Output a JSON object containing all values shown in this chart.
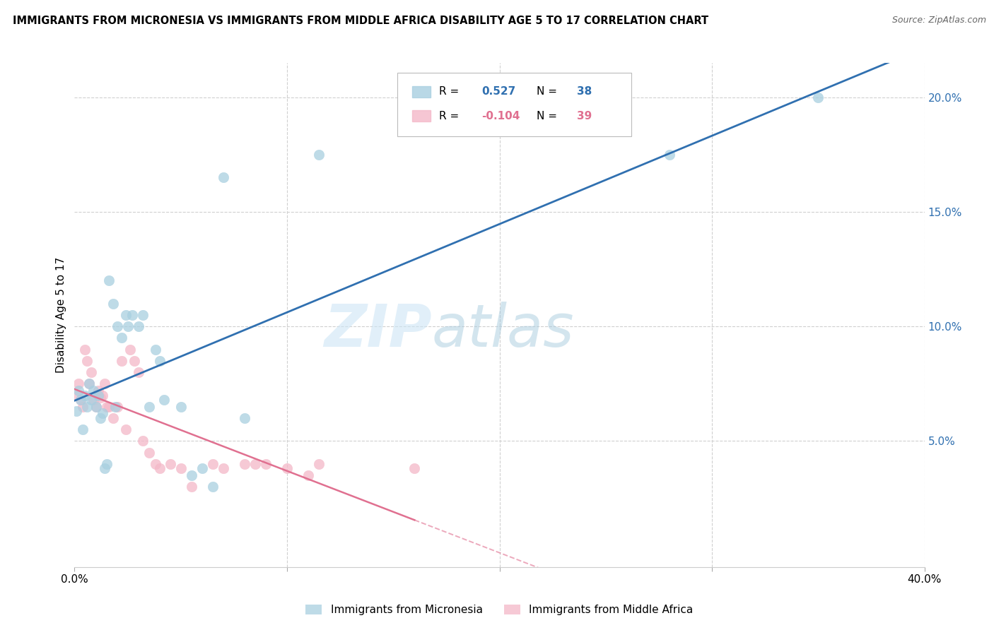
{
  "title": "IMMIGRANTS FROM MICRONESIA VS IMMIGRANTS FROM MIDDLE AFRICA DISABILITY AGE 5 TO 17 CORRELATION CHART",
  "source": "Source: ZipAtlas.com",
  "ylabel": "Disability Age 5 to 17",
  "xlim": [
    0.0,
    0.4
  ],
  "ylim": [
    0.0,
    0.21
  ],
  "plot_ylim": [
    -0.005,
    0.215
  ],
  "y_ticks": [
    0.05,
    0.1,
    0.15,
    0.2
  ],
  "y_tick_labels": [
    "5.0%",
    "10.0%",
    "15.0%",
    "20.0%"
  ],
  "x_ticks": [
    0.0,
    0.1,
    0.2,
    0.3,
    0.4
  ],
  "x_tick_labels": [
    "0.0%",
    "",
    "",
    "",
    "40.0%"
  ],
  "grid_color": "#d0d0d0",
  "background_color": "#ffffff",
  "watermark_zip": "ZIP",
  "watermark_atlas": "atlas",
  "series1_color": "#a8cfe0",
  "series2_color": "#f4b8c8",
  "series1_label": "Immigrants from Micronesia",
  "series2_label": "Immigrants from Middle Africa",
  "R1": "0.527",
  "N1": "38",
  "R2": "-0.104",
  "N2": "39",
  "line1_color": "#3070b0",
  "line2_color": "#e07090",
  "micronesia_x": [
    0.001,
    0.002,
    0.003,
    0.004,
    0.005,
    0.006,
    0.007,
    0.008,
    0.009,
    0.01,
    0.011,
    0.012,
    0.013,
    0.014,
    0.015,
    0.016,
    0.018,
    0.019,
    0.02,
    0.022,
    0.024,
    0.025,
    0.027,
    0.03,
    0.032,
    0.035,
    0.038,
    0.04,
    0.042,
    0.05,
    0.055,
    0.06,
    0.065,
    0.07,
    0.08,
    0.115,
    0.28,
    0.35
  ],
  "micronesia_y": [
    0.063,
    0.072,
    0.068,
    0.055,
    0.07,
    0.065,
    0.075,
    0.068,
    0.072,
    0.065,
    0.07,
    0.06,
    0.062,
    0.038,
    0.04,
    0.12,
    0.11,
    0.065,
    0.1,
    0.095,
    0.105,
    0.1,
    0.105,
    0.1,
    0.105,
    0.065,
    0.09,
    0.085,
    0.068,
    0.065,
    0.035,
    0.038,
    0.03,
    0.165,
    0.06,
    0.175,
    0.175,
    0.2
  ],
  "africa_x": [
    0.001,
    0.002,
    0.003,
    0.004,
    0.005,
    0.006,
    0.007,
    0.008,
    0.009,
    0.01,
    0.011,
    0.012,
    0.013,
    0.014,
    0.015,
    0.016,
    0.018,
    0.02,
    0.022,
    0.024,
    0.026,
    0.028,
    0.03,
    0.032,
    0.035,
    0.038,
    0.04,
    0.045,
    0.05,
    0.055,
    0.065,
    0.07,
    0.08,
    0.085,
    0.09,
    0.1,
    0.11,
    0.115,
    0.16
  ],
  "africa_y": [
    0.07,
    0.075,
    0.068,
    0.065,
    0.09,
    0.085,
    0.075,
    0.08,
    0.068,
    0.065,
    0.072,
    0.069,
    0.07,
    0.075,
    0.065,
    0.065,
    0.06,
    0.065,
    0.085,
    0.055,
    0.09,
    0.085,
    0.08,
    0.05,
    0.045,
    0.04,
    0.038,
    0.04,
    0.038,
    0.03,
    0.04,
    0.038,
    0.04,
    0.04,
    0.04,
    0.038,
    0.035,
    0.04,
    0.038
  ]
}
